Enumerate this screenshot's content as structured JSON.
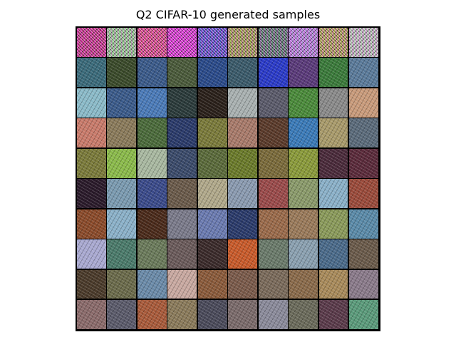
{
  "figure": {
    "title": "Q2 CIFAR-10 generated samples"
  },
  "samples": {
    "rows": 10,
    "cols": 10,
    "tiles": [
      [
        "#b0306a",
        "#7fd67a",
        "#c84a6a",
        "#c832c0",
        "#3a52b8",
        "#8ca832",
        "#3a7a52",
        "#9a8ac8",
        "#9aa83a",
        "#a8d0a8"
      ],
      [
        "#3a6a7a",
        "#3a4a2a",
        "#3a5a8a",
        "#4a5a3a",
        "#2a4a8a",
        "#3a5a6a",
        "#2a3ac8",
        "#5a3a7a",
        "#3a7a3a",
        "#5a7a9a"
      ],
      [
        "#8abac8",
        "#3a5a8a",
        "#4a7ab8",
        "#2a3a3a",
        "#2a201a",
        "#a8b0b0",
        "#5a5a6a",
        "#4a8a3a",
        "#8a8a8a",
        "#c89a7a"
      ],
      [
        "#c87a6a",
        "#8a7a5a",
        "#4a6a3a",
        "#2a3a6a",
        "#7a7a3a",
        "#a87a6a",
        "#5a3a2a",
        "#3a7ab8",
        "#a89a6a",
        "#5a6a7a"
      ],
      [
        "#7a7a3a",
        "#8aba4a",
        "#a8b8a0",
        "#3a4a6a",
        "#5a6a3a",
        "#6a7a2a",
        "#7a6a3a",
        "#8a9a3a",
        "#4a2a3a",
        "#5a2a3a"
      ],
      [
        "#2a1a2a",
        "#7a9ab0",
        "#3a4a8a",
        "#6a5a4a",
        "#b0a88a",
        "#8a9ab0",
        "#9a4a4a",
        "#8a9a6a",
        "#8ab0c8",
        "#9a4a3a"
      ],
      [
        "#8a4a2a",
        "#8ab0c8",
        "#4a2a1a",
        "#7a7a8a",
        "#6a7ab0",
        "#2a3a6a",
        "#9a6a4a",
        "#9a7a5a",
        "#8a9a5a",
        "#5a8aa8"
      ],
      [
        "#a8a8d0",
        "#4a7a6a",
        "#6a7a5a",
        "#6a5a5a",
        "#3a2a2a",
        "#c85a2a",
        "#6a7a6a",
        "#8aa0b0",
        "#4a6a8a",
        "#6a5a4a"
      ],
      [
        "#4a3a2a",
        "#6a6a4a",
        "#6a8aa8",
        "#c8a8a0",
        "#8a5a3a",
        "#7a5a4a",
        "#7a6a5a",
        "#8a6a4a",
        "#a88a5a",
        "#8a7a8a"
      ],
      [
        "#8a6a6a",
        "#5a5a6a",
        "#a85a3a",
        "#8a7a5a",
        "#4a4a5a",
        "#7a6a6a",
        "#8a8a9a",
        "#6a6a5a",
        "#5a3a4a",
        "#5a9a7a"
      ]
    ]
  }
}
